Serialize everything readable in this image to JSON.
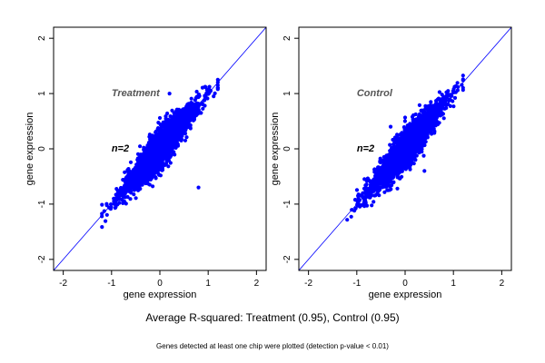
{
  "caption": {
    "main": "Average R-squared: Treatment (0.95), Control (0.95)",
    "note": "Genes detected at least one chip were plotted (detection p-value < 0.01)"
  },
  "colors": {
    "points": "#0000ff",
    "diagonal": "#0000ff",
    "annotation": "#555555",
    "count": "#000000"
  },
  "chart_data": [
    {
      "type": "scatter",
      "title": "Treatment",
      "count_label": "n=2",
      "xlabel": "gene expression",
      "ylabel": "gene expression",
      "xlim": [
        -2.2,
        2.2
      ],
      "ylim": [
        -2.2,
        2.2
      ],
      "xticks": [
        -2,
        -1,
        0,
        1,
        2
      ],
      "yticks": [
        -2,
        -1,
        0,
        1,
        2
      ],
      "reference_line": {
        "slope": 1,
        "intercept": 0
      },
      "cloud": {
        "x_range": [
          -1.2,
          1.2
        ],
        "correlation": 0.95,
        "extra_spread": [
          [
            0.2,
            1.0
          ],
          [
            0.5,
            0.6
          ],
          [
            0.8,
            -0.7
          ]
        ]
      },
      "grid": false,
      "legend": "none"
    },
    {
      "type": "scatter",
      "title": "Control",
      "count_label": "n=2",
      "xlabel": "gene expression",
      "ylabel": "gene expression",
      "xlim": [
        -2.2,
        2.2
      ],
      "ylim": [
        -2.2,
        2.2
      ],
      "xticks": [
        -2,
        -1,
        0,
        1,
        2
      ],
      "yticks": [
        -2,
        -1,
        0,
        1,
        2
      ],
      "reference_line": {
        "slope": 1,
        "intercept": 0
      },
      "cloud": {
        "x_range": [
          -1.2,
          1.2
        ],
        "correlation": 0.95,
        "extra_spread": [
          [
            0.4,
            -0.4
          ],
          [
            -0.3,
            0.4
          ]
        ]
      },
      "grid": false,
      "legend": "none"
    }
  ]
}
